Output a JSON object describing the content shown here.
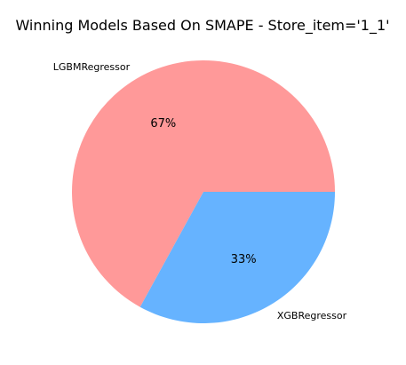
{
  "chart_data": {
    "type": "pie",
    "title": "Winning Models Based On SMAPE - Store_item='1_1'",
    "slices": [
      {
        "label": "LGBMRegressor",
        "value": 67,
        "pct_label": "67%",
        "color": "#ff9999"
      },
      {
        "label": "XGBRegressor",
        "value": 33,
        "pct_label": "33%",
        "color": "#66b3ff"
      }
    ],
    "start_angle": 0,
    "direction": "counterclockwise"
  }
}
